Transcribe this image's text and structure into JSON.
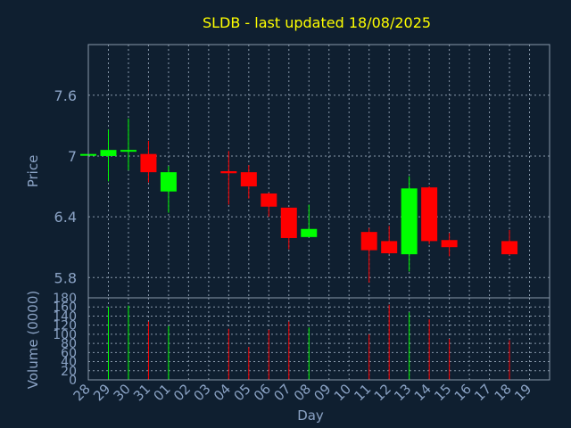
{
  "chart_data": [
    {
      "type": "candlestick",
      "title": "SLDB - last updated 18/08/2025",
      "ylabel": "Price",
      "ylim": [
        5.6,
        8.1
      ],
      "yticks": [
        5.8,
        6.4,
        7,
        7.6
      ],
      "ytick_labels": [
        "5.8",
        "6.4",
        "7",
        "7.6"
      ],
      "grid": true,
      "x": [
        "28",
        "29",
        "30",
        "31",
        "01",
        "02",
        "03",
        "04",
        "05",
        "06",
        "07",
        "08",
        "09",
        "10",
        "11",
        "12",
        "13",
        "14",
        "15",
        "16",
        "17",
        "18",
        "19"
      ],
      "candles": [
        {
          "day": "28",
          "open": 7.02,
          "close": 7.02,
          "high": 7.03,
          "low": 7.01
        },
        {
          "day": "29",
          "open": 7.0,
          "close": 7.06,
          "high": 7.26,
          "low": 6.75
        },
        {
          "day": "30",
          "open": 7.05,
          "close": 7.06,
          "high": 7.37,
          "low": 6.86
        },
        {
          "day": "31",
          "open": 7.02,
          "close": 6.84,
          "high": 7.15,
          "low": 6.74
        },
        {
          "day": "01",
          "open": 6.65,
          "close": 6.84,
          "high": 6.9,
          "low": 6.44
        },
        {
          "day": "04",
          "open": 6.85,
          "close": 6.83,
          "high": 7.05,
          "low": 6.52
        },
        {
          "day": "05",
          "open": 6.84,
          "close": 6.7,
          "high": 6.91,
          "low": 6.58
        },
        {
          "day": "06",
          "open": 6.63,
          "close": 6.5,
          "high": 6.64,
          "low": 6.4
        },
        {
          "day": "07",
          "open": 6.49,
          "close": 6.19,
          "high": 6.49,
          "low": 6.08
        },
        {
          "day": "08",
          "open": 6.2,
          "close": 6.28,
          "high": 6.52,
          "low": 6.2
        },
        {
          "day": "11",
          "open": 6.25,
          "close": 6.07,
          "high": 6.29,
          "low": 5.75
        },
        {
          "day": "12",
          "open": 6.16,
          "close": 6.04,
          "high": 6.31,
          "low": 6.03
        },
        {
          "day": "13",
          "open": 6.03,
          "close": 6.68,
          "high": 6.8,
          "low": 5.86
        },
        {
          "day": "14",
          "open": 6.69,
          "close": 6.16,
          "high": 6.7,
          "low": 6.13
        },
        {
          "day": "15",
          "open": 6.17,
          "close": 6.1,
          "high": 6.24,
          "low": 6.01
        },
        {
          "day": "18",
          "open": 6.16,
          "close": 6.03,
          "high": 6.27,
          "low": 6.02
        }
      ],
      "colors": {
        "up": "#00ff00",
        "down": "#ff0000"
      }
    },
    {
      "type": "bar",
      "ylabel": "Volume (0000)",
      "xlabel": "Day",
      "ylim": [
        0,
        180
      ],
      "yticks": [
        0,
        20,
        40,
        60,
        80,
        100,
        120,
        140,
        160,
        180
      ],
      "ytick_labels": [
        "0",
        "20",
        "40",
        "60",
        "80",
        "100",
        "120",
        "140",
        "160",
        "180"
      ],
      "grid": true,
      "categories": [
        "29",
        "30",
        "31",
        "01",
        "04",
        "05",
        "06",
        "07",
        "08",
        "11",
        "12",
        "13",
        "14",
        "15",
        "18"
      ],
      "values": [
        160,
        163,
        128,
        118,
        112,
        72,
        110,
        128,
        115,
        100,
        165,
        148,
        133,
        90,
        87
      ],
      "bar_colors": [
        "up",
        "up",
        "down",
        "up",
        "down",
        "down",
        "down",
        "down",
        "up",
        "down",
        "down",
        "up",
        "down",
        "down",
        "down"
      ]
    }
  ],
  "style": {
    "background": "#0f1f30",
    "plot_border": "#8898aa",
    "grid": "#8898aa",
    "title_color": "#ffff00",
    "label_color": "#8aa2c4",
    "tick_color": "#8aa2c4"
  }
}
